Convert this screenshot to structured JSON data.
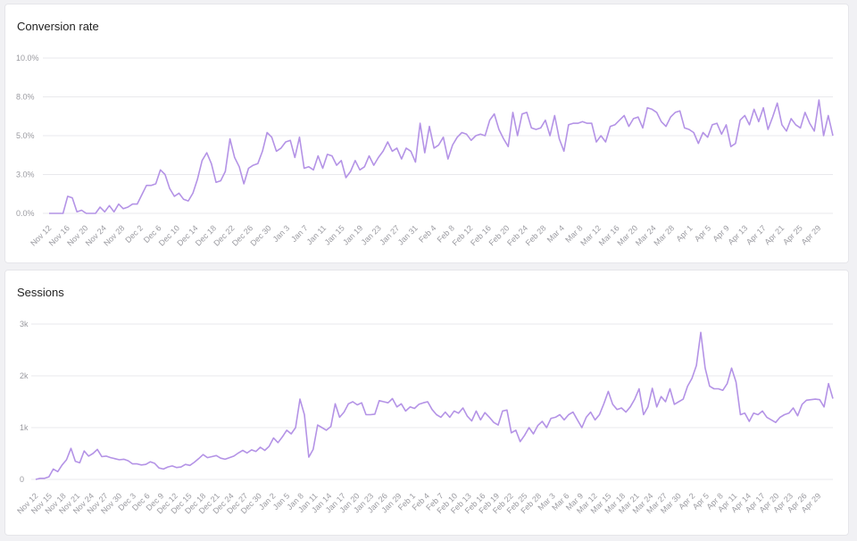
{
  "colors": {
    "line": "#b493e6",
    "grid": "#e9e9ec",
    "tick": "#9a9aa0"
  },
  "charts": [
    {
      "title": "Conversion rate"
    },
    {
      "title": "Sessions"
    }
  ],
  "chart_data": [
    {
      "type": "line",
      "title": "Conversion rate",
      "x_start": "Nov 12",
      "x_end": "Apr 30",
      "xtick_labels": [
        "Nov 12",
        "Nov 16",
        "Nov 20",
        "Nov 24",
        "Nov 28",
        "Dec 2",
        "Dec 6",
        "Dec 10",
        "Dec 14",
        "Dec 18",
        "Dec 22",
        "Dec 26",
        "Dec 30",
        "Jan 3",
        "Jan 7",
        "Jan 11",
        "Jan 15",
        "Jan 19",
        "Jan 23",
        "Jan 27",
        "Jan 31",
        "Feb 4",
        "Feb 8",
        "Feb 12",
        "Feb 16",
        "Feb 20",
        "Feb 24",
        "Feb 28",
        "Mar 4",
        "Mar 8",
        "Mar 12",
        "Mar 16",
        "Mar 20",
        "Mar 24",
        "Mar 28",
        "Apr 1",
        "Apr 5",
        "Apr 9",
        "Apr 13",
        "Apr 17",
        "Apr 21",
        "Apr 25",
        "Apr 29"
      ],
      "ytick_labels": [
        "0.0%",
        "3.0%",
        "5.0%",
        "8.0%",
        "10.0%"
      ],
      "ylim": [
        0,
        10
      ],
      "grid": true,
      "series": [
        {
          "values": [
            0.0,
            0.0,
            0.0,
            0.0,
            1.1,
            1.0,
            0.1,
            0.2,
            0.0,
            0.0,
            0.0,
            0.4,
            0.1,
            0.5,
            0.1,
            0.6,
            0.3,
            0.4,
            0.6,
            0.6,
            1.2,
            1.8,
            1.8,
            1.9,
            2.8,
            2.5,
            1.6,
            1.1,
            1.3,
            0.9,
            0.8,
            1.3,
            2.2,
            3.4,
            3.9,
            3.2,
            2.0,
            2.1,
            2.7,
            4.8,
            3.6,
            3.0,
            1.9,
            2.9,
            3.1,
            3.2,
            4.0,
            5.2,
            4.9,
            4.0,
            4.2,
            4.6,
            4.7,
            3.6,
            4.9,
            2.9,
            3.0,
            2.8,
            3.7,
            2.9,
            3.8,
            3.7,
            3.1,
            3.4,
            2.3,
            2.7,
            3.4,
            2.8,
            3.0,
            3.7,
            3.1,
            3.6,
            4.0,
            4.6,
            4.0,
            4.2,
            3.5,
            4.2,
            4.0,
            3.3,
            5.8,
            3.9,
            5.6,
            4.2,
            4.4,
            4.9,
            3.5,
            4.4,
            4.9,
            5.2,
            5.1,
            4.7,
            5.0,
            5.1,
            5.0,
            6.0,
            6.4,
            5.4,
            4.8,
            4.3,
            6.5,
            5.0,
            6.4,
            6.5,
            5.5,
            5.4,
            5.5,
            6.0,
            5.0,
            6.3,
            4.8,
            4.0,
            5.7,
            5.8,
            5.8,
            5.9,
            5.8,
            5.8,
            4.6,
            5.0,
            4.6,
            5.6,
            5.7,
            6.0,
            6.3,
            5.6,
            6.1,
            6.2,
            5.5,
            6.8,
            6.7,
            6.5,
            5.9,
            5.6,
            6.2,
            6.5,
            6.6,
            5.5,
            5.4,
            5.2,
            4.5,
            5.2,
            4.9,
            5.7,
            5.8,
            5.1,
            5.7,
            4.3,
            4.5,
            6.0,
            6.3,
            5.7,
            6.7,
            5.9,
            6.8,
            5.4,
            6.2,
            7.1,
            5.7,
            5.3,
            6.1,
            5.7,
            5.5,
            6.5,
            5.8,
            5.3,
            7.3,
            5.0,
            6.3,
            5.0
          ]
        }
      ]
    },
    {
      "type": "line",
      "title": "Sessions",
      "x_start": "Nov 12",
      "x_end": "Apr 30",
      "xtick_labels": [
        "Nov 12",
        "Nov 15",
        "Nov 18",
        "Nov 21",
        "Nov 24",
        "Nov 27",
        "Nov 30",
        "Dec 3",
        "Dec 6",
        "Dec 9",
        "Dec 12",
        "Dec 15",
        "Dec 18",
        "Dec 21",
        "Dec 24",
        "Dec 27",
        "Dec 30",
        "Jan 2",
        "Jan 5",
        "Jan 8",
        "Jan 11",
        "Jan 14",
        "Jan 17",
        "Jan 20",
        "Jan 23",
        "Jan 26",
        "Jan 29",
        "Feb 1",
        "Feb 4",
        "Feb 7",
        "Feb 10",
        "Feb 13",
        "Feb 16",
        "Feb 19",
        "Feb 22",
        "Feb 25",
        "Feb 28",
        "Mar 3",
        "Mar 6",
        "Mar 9",
        "Mar 12",
        "Mar 15",
        "Mar 18",
        "Mar 21",
        "Mar 24",
        "Mar 27",
        "Mar 30",
        "Apr 2",
        "Apr 5",
        "Apr 8",
        "Apr 11",
        "Apr 14",
        "Apr 17",
        "Apr 20",
        "Apr 23",
        "Apr 26",
        "Apr 29"
      ],
      "ytick_labels": [
        "0",
        "1k",
        "2k",
        "3k"
      ],
      "ylim": [
        0,
        3000
      ],
      "grid": true,
      "series": [
        {
          "values": [
            0,
            20,
            20,
            50,
            200,
            150,
            280,
            380,
            600,
            350,
            320,
            550,
            450,
            500,
            580,
            440,
            450,
            420,
            400,
            380,
            390,
            360,
            300,
            300,
            280,
            290,
            340,
            310,
            220,
            200,
            240,
            260,
            230,
            240,
            290,
            270,
            330,
            400,
            480,
            420,
            440,
            460,
            410,
            390,
            420,
            450,
            510,
            560,
            510,
            570,
            540,
            620,
            560,
            640,
            800,
            710,
            820,
            950,
            880,
            1000,
            1550,
            1250,
            430,
            580,
            1050,
            1000,
            950,
            1020,
            1460,
            1200,
            1300,
            1460,
            1500,
            1440,
            1480,
            1250,
            1250,
            1260,
            1520,
            1500,
            1480,
            1560,
            1400,
            1460,
            1320,
            1400,
            1370,
            1450,
            1480,
            1500,
            1350,
            1250,
            1200,
            1300,
            1200,
            1320,
            1280,
            1380,
            1220,
            1130,
            1320,
            1150,
            1290,
            1200,
            1100,
            1050,
            1320,
            1340,
            900,
            950,
            730,
            850,
            1000,
            880,
            1040,
            1120,
            1000,
            1180,
            1200,
            1250,
            1150,
            1250,
            1300,
            1150,
            1000,
            1200,
            1300,
            1150,
            1250,
            1460,
            1700,
            1450,
            1350,
            1380,
            1300,
            1400,
            1550,
            1750,
            1250,
            1400,
            1760,
            1400,
            1600,
            1500,
            1750,
            1450,
            1500,
            1550,
            1800,
            1950,
            2200,
            2840,
            2150,
            1800,
            1750,
            1750,
            1720,
            1850,
            2150,
            1880,
            1250,
            1280,
            1120,
            1280,
            1250,
            1320,
            1200,
            1150,
            1100,
            1200,
            1250,
            1280,
            1380,
            1230,
            1450,
            1530,
            1540,
            1550,
            1540,
            1400,
            1850,
            1560
          ]
        }
      ]
    }
  ]
}
